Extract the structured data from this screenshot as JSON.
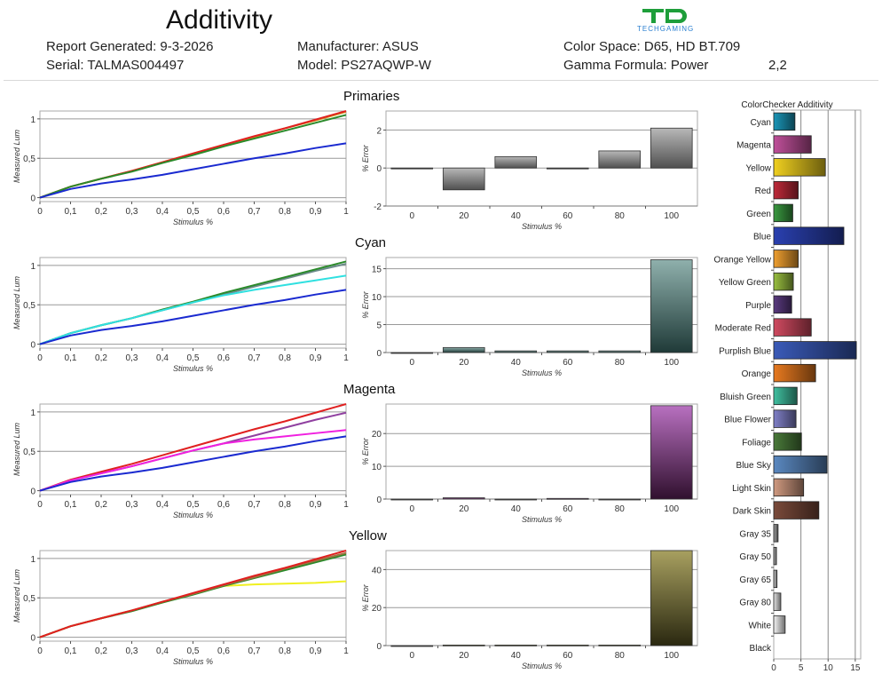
{
  "header": {
    "title": "Additivity",
    "report_generated_label": "Report Generated: 9-3-2026",
    "serial_label": "Serial: TALMAS004497",
    "manufacturer_label": "Manufacturer: ASUS",
    "model_label": "Model: PS27AQWP-W",
    "color_space_label": "Color Space: D65, HD BT.709",
    "gamma_formula_label": "Gamma Formula: Power",
    "gamma_value": "2,2",
    "logo": {
      "mark": "TG",
      "text": "TECHGAMING",
      "mark_color": "#1e9e3a",
      "text_color": "#2a7fd0"
    }
  },
  "chart_data": [
    {
      "id": "primaries-lum",
      "type": "line",
      "section": "Primaries",
      "xlabel": "Stimulus %",
      "ylabel": "Measured Lum",
      "xlim": [
        0,
        1
      ],
      "ylim": [
        -0.05,
        1.1
      ],
      "xticks": [
        "0",
        "0,1",
        "0,2",
        "0,3",
        "0,4",
        "0,5",
        "0,6",
        "0,7",
        "0,8",
        "0,9",
        "1"
      ],
      "yticks": [
        {
          "v": 0,
          "label": "0"
        },
        {
          "v": 0.5,
          "label": "0,5"
        },
        {
          "v": 1,
          "label": "1"
        }
      ],
      "x": [
        0,
        0.1,
        0.2,
        0.3,
        0.4,
        0.5,
        0.6,
        0.7,
        0.8,
        0.9,
        1
      ],
      "series": [
        {
          "name": "Sum",
          "color": "#d0a020",
          "values": [
            0,
            0.14,
            0.24,
            0.34,
            0.45,
            0.56,
            0.67,
            0.77,
            0.88,
            0.98,
            1.09
          ]
        },
        {
          "name": "Red",
          "color": "#e02020",
          "values": [
            0,
            0.14,
            0.24,
            0.34,
            0.45,
            0.56,
            0.67,
            0.78,
            0.88,
            0.99,
            1.1
          ]
        },
        {
          "name": "Green",
          "color": "#2a8a2a",
          "values": [
            0,
            0.14,
            0.24,
            0.33,
            0.44,
            0.54,
            0.65,
            0.75,
            0.85,
            0.95,
            1.05
          ]
        },
        {
          "name": "Blue",
          "color": "#1a2ad0",
          "values": [
            0,
            0.11,
            0.18,
            0.23,
            0.29,
            0.36,
            0.43,
            0.5,
            0.56,
            0.63,
            0.69
          ]
        }
      ]
    },
    {
      "id": "primaries-error",
      "type": "bar",
      "section": "Primaries",
      "xlabel": "Stimulus %",
      "ylabel": "% Error",
      "categories": [
        "0",
        "20",
        "40",
        "60",
        "80",
        "100"
      ],
      "values": [
        0,
        -1.15,
        0.6,
        0,
        0.9,
        2.1
      ],
      "ylim": [
        -2,
        3
      ],
      "yticks": [
        {
          "v": -2,
          "label": "-2"
        },
        {
          "v": 0,
          "label": "0"
        },
        {
          "v": 2,
          "label": "2"
        }
      ],
      "bar_color_top": "#b8b8b8",
      "bar_color_bottom": "#505050"
    },
    {
      "id": "cyan-lum",
      "type": "line",
      "section": "Cyan",
      "xlabel": "Stimulus %",
      "ylabel": "Measured Lum",
      "xlim": [
        0,
        1
      ],
      "ylim": [
        -0.05,
        1.1
      ],
      "xticks": [
        "0",
        "0,1",
        "0,2",
        "0,3",
        "0,4",
        "0,5",
        "0,6",
        "0,7",
        "0,8",
        "0,9",
        "1"
      ],
      "yticks": [
        {
          "v": 0,
          "label": "0"
        },
        {
          "v": 0.5,
          "label": "0,5"
        },
        {
          "v": 1,
          "label": "1"
        }
      ],
      "x": [
        0,
        0.1,
        0.2,
        0.3,
        0.4,
        0.5,
        0.6,
        0.7,
        0.8,
        0.9,
        1
      ],
      "series": [
        {
          "name": "Sum",
          "color": "#6a8a8a",
          "values": [
            0,
            0.14,
            0.24,
            0.33,
            0.43,
            0.53,
            0.63,
            0.73,
            0.83,
            0.93,
            1.02
          ]
        },
        {
          "name": "Green",
          "color": "#2a8a2a",
          "values": [
            0,
            0.14,
            0.24,
            0.33,
            0.44,
            0.54,
            0.65,
            0.75,
            0.85,
            0.95,
            1.05
          ]
        },
        {
          "name": "Cyan",
          "color": "#30e0e0",
          "values": [
            0,
            0.14,
            0.24,
            0.33,
            0.43,
            0.53,
            0.62,
            0.69,
            0.75,
            0.81,
            0.87
          ]
        },
        {
          "name": "Blue",
          "color": "#1a2ad0",
          "values": [
            0,
            0.11,
            0.18,
            0.23,
            0.29,
            0.36,
            0.43,
            0.5,
            0.56,
            0.63,
            0.69
          ]
        }
      ]
    },
    {
      "id": "cyan-error",
      "type": "bar",
      "section": "Cyan",
      "xlabel": "Stimulus %",
      "ylabel": "% Error",
      "categories": [
        "0",
        "20",
        "40",
        "60",
        "80",
        "100"
      ],
      "values": [
        0,
        0.9,
        0.3,
        0.3,
        0.3,
        16.6
      ],
      "ylim": [
        0,
        17
      ],
      "yticks": [
        {
          "v": 0,
          "label": "0"
        },
        {
          "v": 5,
          "label": "5"
        },
        {
          "v": 10,
          "label": "10"
        },
        {
          "v": 15,
          "label": "15"
        }
      ],
      "bar_color_top": "#8fb0ac",
      "bar_color_bottom": "#1f3a38"
    },
    {
      "id": "magenta-lum",
      "type": "line",
      "section": "Magenta",
      "xlabel": "Stimulus %",
      "ylabel": "Measured Lum",
      "xlim": [
        0,
        1
      ],
      "ylim": [
        -0.05,
        1.1
      ],
      "xticks": [
        "0",
        "0,1",
        "0,2",
        "0,3",
        "0,4",
        "0,5",
        "0,6",
        "0,7",
        "0,8",
        "0,9",
        "1"
      ],
      "yticks": [
        {
          "v": 0,
          "label": "0"
        },
        {
          "v": 0.5,
          "label": "0,5"
        },
        {
          "v": 1,
          "label": "1"
        }
      ],
      "x": [
        0,
        0.1,
        0.2,
        0.3,
        0.4,
        0.5,
        0.6,
        0.7,
        0.8,
        0.9,
        1
      ],
      "series": [
        {
          "name": "Red",
          "color": "#e02020",
          "values": [
            0,
            0.14,
            0.24,
            0.34,
            0.45,
            0.56,
            0.67,
            0.78,
            0.88,
            0.99,
            1.1
          ]
        },
        {
          "name": "Sum",
          "color": "#9040a0",
          "values": [
            0,
            0.13,
            0.22,
            0.31,
            0.41,
            0.51,
            0.6,
            0.7,
            0.8,
            0.9,
            0.99
          ]
        },
        {
          "name": "Magenta",
          "color": "#f020e0",
          "values": [
            0,
            0.13,
            0.22,
            0.31,
            0.41,
            0.51,
            0.6,
            0.65,
            0.69,
            0.73,
            0.77
          ]
        },
        {
          "name": "Blue",
          "color": "#1a2ad0",
          "values": [
            0,
            0.11,
            0.18,
            0.23,
            0.29,
            0.36,
            0.43,
            0.5,
            0.56,
            0.63,
            0.69
          ]
        }
      ]
    },
    {
      "id": "magenta-error",
      "type": "bar",
      "section": "Magenta",
      "xlabel": "Stimulus %",
      "ylabel": "% Error",
      "categories": [
        "0",
        "20",
        "40",
        "60",
        "80",
        "100"
      ],
      "values": [
        0,
        0.4,
        0,
        0.2,
        0,
        28.5
      ],
      "ylim": [
        0,
        29
      ],
      "yticks": [
        {
          "v": 0,
          "label": "0"
        },
        {
          "v": 10,
          "label": "10"
        },
        {
          "v": 20,
          "label": "20"
        }
      ],
      "bar_color_top": "#b870c0",
      "bar_color_bottom": "#30102e"
    },
    {
      "id": "yellow-lum",
      "type": "line",
      "section": "Yellow",
      "xlabel": "Stimulus %",
      "ylabel": "Measured Lum",
      "xlim": [
        0,
        1
      ],
      "ylim": [
        -0.05,
        1.1
      ],
      "xticks": [
        "0",
        "0,1",
        "0,2",
        "0,3",
        "0,4",
        "0,5",
        "0,6",
        "0,7",
        "0,8",
        "0,9",
        "1"
      ],
      "yticks": [
        {
          "v": 0,
          "label": "0"
        },
        {
          "v": 0.5,
          "label": "0,5"
        },
        {
          "v": 1,
          "label": "1"
        }
      ],
      "x": [
        0,
        0.1,
        0.2,
        0.3,
        0.4,
        0.5,
        0.6,
        0.7,
        0.8,
        0.9,
        1
      ],
      "series": [
        {
          "name": "Yellow",
          "color": "#f0f020",
          "values": [
            0,
            0.14,
            0.24,
            0.34,
            0.44,
            0.55,
            0.65,
            0.67,
            0.68,
            0.69,
            0.71
          ]
        },
        {
          "name": "Green",
          "color": "#2a8a2a",
          "values": [
            0,
            0.14,
            0.24,
            0.33,
            0.44,
            0.54,
            0.65,
            0.75,
            0.85,
            0.95,
            1.05
          ]
        },
        {
          "name": "Sum",
          "color": "#a07040",
          "values": [
            0,
            0.14,
            0.24,
            0.34,
            0.45,
            0.55,
            0.66,
            0.76,
            0.87,
            0.97,
            1.07
          ]
        },
        {
          "name": "Red",
          "color": "#e02020",
          "values": [
            0,
            0.14,
            0.24,
            0.34,
            0.45,
            0.56,
            0.67,
            0.78,
            0.88,
            0.99,
            1.1
          ]
        }
      ]
    },
    {
      "id": "yellow-error",
      "type": "bar",
      "section": "Yellow",
      "xlabel": "Stimulus %",
      "ylabel": "% Error",
      "categories": [
        "0",
        "20",
        "40",
        "60",
        "80",
        "100"
      ],
      "values": [
        0,
        0.3,
        0.3,
        0.3,
        0.3,
        50
      ],
      "ylim": [
        0,
        50
      ],
      "yticks": [
        {
          "v": 0,
          "label": "0"
        },
        {
          "v": 20,
          "label": "20"
        },
        {
          "v": 40,
          "label": "40"
        }
      ],
      "bar_color_top": "#a8a060",
      "bar_color_bottom": "#2a2810"
    },
    {
      "id": "colorchecker-additivity",
      "type": "bar",
      "orientation": "horizontal",
      "title": "ColorChecker Additivity",
      "xlim": [
        0,
        16
      ],
      "xticks": [
        {
          "v": 0,
          "label": "0"
        },
        {
          "v": 5,
          "label": "5"
        },
        {
          "v": 10,
          "label": "10"
        },
        {
          "v": 15,
          "label": "15"
        }
      ],
      "categories": [
        "Cyan",
        "Magenta",
        "Yellow",
        "Red",
        "Green",
        "Blue",
        "Orange Yellow",
        "Yellow Green",
        "Purple",
        "Moderate Red",
        "Purplish Blue",
        "Orange",
        "Bluish Green",
        "Blue Flower",
        "Foliage",
        "Blue Sky",
        "Light Skin",
        "Dark Skin",
        "Gray 35",
        "Gray 50",
        "Gray 65",
        "Gray 80",
        "White",
        "Black"
      ],
      "values": [
        3.9,
        6.9,
        9.5,
        4.5,
        3.5,
        12.9,
        4.5,
        3.6,
        3.3,
        6.9,
        15.2,
        7.7,
        4.3,
        4.1,
        5.1,
        9.8,
        5.5,
        8.3,
        0.8,
        0.5,
        0.6,
        1.3,
        2.1,
        0
      ],
      "colors": [
        "#1a96b8",
        "#c0509a",
        "#f0d020",
        "#c02a3a",
        "#3a9a40",
        "#2a40b0",
        "#f0a030",
        "#9ac040",
        "#5a3a80",
        "#d04a60",
        "#3a5ab8",
        "#e87a20",
        "#40c0a0",
        "#8080c8",
        "#4a7a3a",
        "#5a88c0",
        "#d09a80",
        "#7a4a3a",
        "#a0a0a0",
        "#b8b8b8",
        "#d0d0d0",
        "#e4e4e4",
        "#f4f4f4",
        "#202020"
      ]
    }
  ]
}
